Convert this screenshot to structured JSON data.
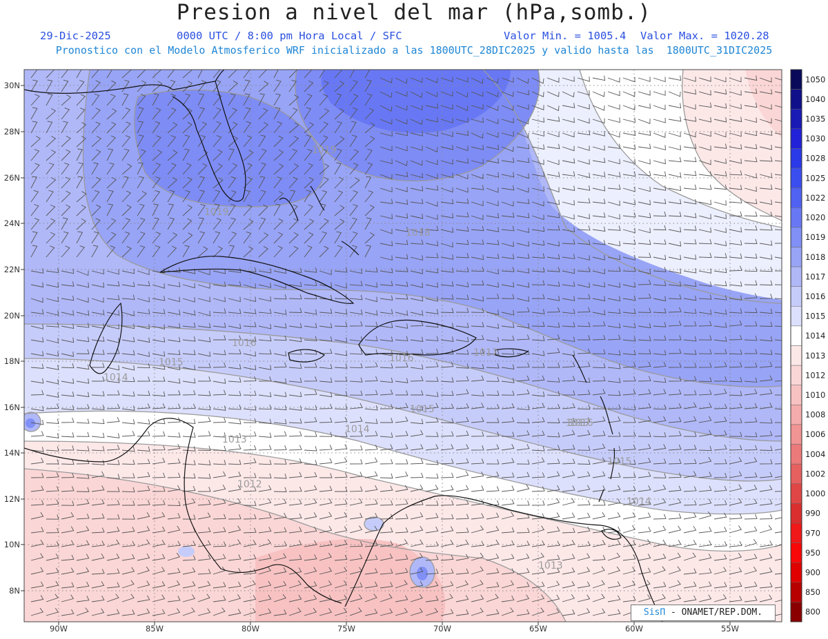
{
  "header": {
    "title": "Presion a nivel del mar (hPa,somb.)",
    "date": "29-Dic-2025",
    "time": "0000 UTC / 8:00 pm Hora Local / SFC",
    "min_label": "Valor Min. = 1005.4",
    "max_label": "Valor Max. = 1020.28",
    "forecast": "Pronostico con el Modelo Atmosferico WRF inicializado a las 1800UTC_28DIC2025 y valido hasta las  1800UTC_31DIC2025"
  },
  "map": {
    "lat_labels": [
      "30N",
      "28N",
      "26N",
      "24N",
      "22N",
      "20N",
      "18N",
      "16N",
      "14N",
      "12N",
      "10N",
      "8N"
    ],
    "lon_labels": [
      "90W",
      "85W",
      "80W",
      "75W",
      "70W",
      "65W",
      "60W",
      "55W"
    ],
    "contour_labels": [
      "1019",
      "1019",
      "1018",
      "1016",
      "1015",
      "1014",
      "1016",
      "1017",
      "1017",
      "1015",
      "1014",
      "1013",
      "1016",
      "1015",
      "1014",
      "1012",
      "1013"
    ]
  },
  "colorbar": {
    "values": [
      "1050",
      "1040",
      "1035",
      "1030",
      "1028",
      "1025",
      "1022",
      "1020",
      "1019",
      "1018",
      "1017",
      "1016",
      "1015",
      "1014",
      "1013",
      "1012",
      "1010",
      "1008",
      "1006",
      "1004",
      "1002",
      "1000",
      "990",
      "970",
      "950",
      "900",
      "850",
      "800"
    ],
    "colors": [
      "#0a0a5a",
      "#10108a",
      "#1a1ab4",
      "#2222d8",
      "#2a3ae8",
      "#3a4ef0",
      "#5062f2",
      "#6878f4",
      "#8090f6",
      "#98a4f6",
      "#b0b8f8",
      "#c6ccfa",
      "#dde0fc",
      "#ffffff",
      "#fde8e8",
      "#fbd6d6",
      "#f8c2c2",
      "#f5acac",
      "#f19494",
      "#ec7a7a",
      "#e66060",
      "#e04646",
      "#da2e2e",
      "#f01818",
      "#f80808",
      "#e00000",
      "#b80000",
      "#8a0000"
    ]
  },
  "credit": {
    "brand": "SisΠ",
    "text": " - ONAMET/REP.DOM."
  }
}
